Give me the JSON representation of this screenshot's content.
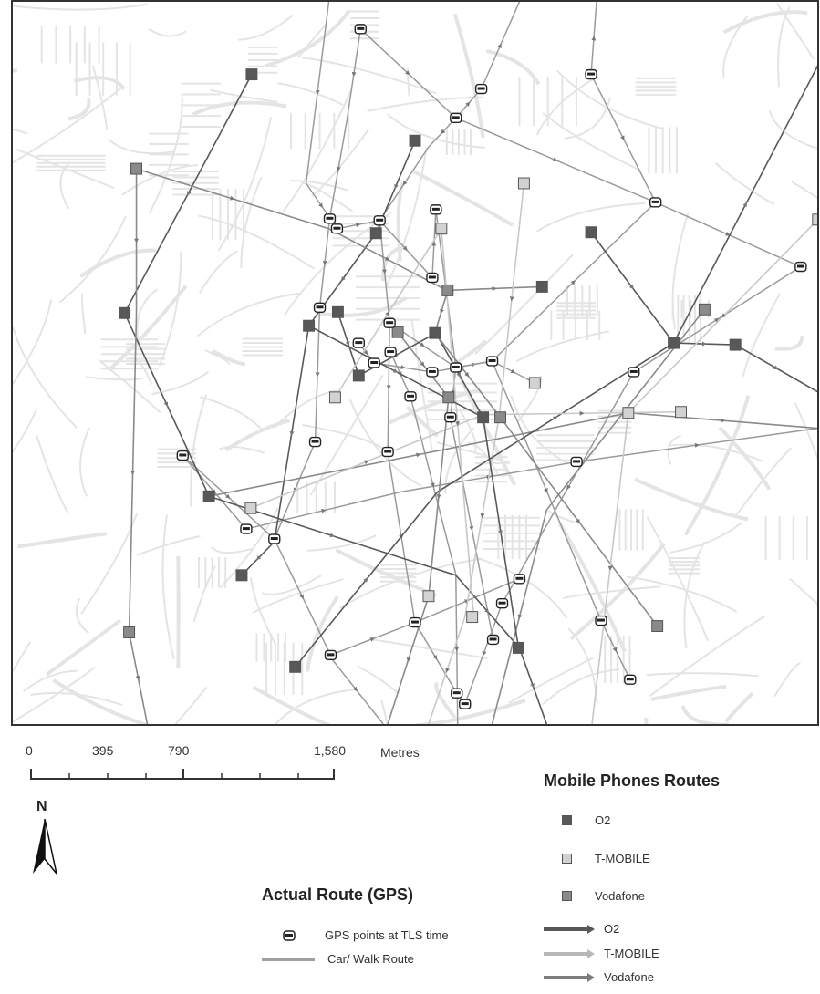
{
  "map": {
    "colors": {
      "o2": "#585858",
      "tmobile": "#c8c8c8",
      "vodafone": "#8a8a8a",
      "gps_route": "#9a9a9a",
      "street": "#e4e4e4"
    },
    "routes": [
      {
        "net": "o2",
        "pts": [
          [
            275,
            80
          ],
          [
            135,
            343
          ],
          [
            228,
            545
          ],
          [
            500,
            632
          ],
          [
            570,
            712
          ],
          [
            600,
            796
          ]
        ]
      },
      {
        "net": "vodafone",
        "pts": [
          [
            148,
            184
          ],
          [
            148,
            343
          ],
          [
            140,
            695
          ],
          [
            160,
            796
          ]
        ]
      },
      {
        "net": "o2",
        "pts": [
          [
            455,
            153
          ],
          [
            412,
            255
          ],
          [
            338,
            357
          ],
          [
            300,
            595
          ],
          [
            264,
            632
          ]
        ]
      },
      {
        "net": "vodafone",
        "pts": [
          [
            148,
            184
          ],
          [
            360,
            250
          ],
          [
            490,
            318
          ],
          [
            595,
            314
          ]
        ]
      },
      {
        "net": "o2",
        "pts": [
          [
            649,
            254
          ],
          [
            740,
            376
          ],
          [
            808,
            378
          ],
          [
            899,
            430
          ]
        ]
      },
      {
        "net": "tmobile",
        "pts": [
          [
            575,
            200
          ],
          [
            548,
            455
          ],
          [
            510,
            678
          ],
          [
            470,
            796
          ]
        ]
      },
      {
        "net": "vodafone",
        "pts": [
          [
            228,
            545
          ],
          [
            690,
            453
          ],
          [
            899,
            470
          ]
        ]
      },
      {
        "net": "o2",
        "pts": [
          [
            323,
            733
          ],
          [
            480,
            540
          ],
          [
            740,
            376
          ],
          [
            899,
            70
          ]
        ]
      },
      {
        "net": "tmobile",
        "pts": [
          [
            274,
            558
          ],
          [
            530,
            455
          ],
          [
            748,
            452
          ]
        ]
      },
      {
        "net": "vodafone",
        "pts": [
          [
            774,
            339
          ],
          [
            600,
            560
          ],
          [
            540,
            796
          ]
        ]
      },
      {
        "net": "o2",
        "pts": [
          [
            370,
            342
          ],
          [
            393,
            412
          ],
          [
            478,
            365
          ],
          [
            530,
            458
          ]
        ]
      },
      {
        "net": "tmobile",
        "pts": [
          [
            367,
            436
          ],
          [
            484,
            250
          ],
          [
            520,
            680
          ]
        ]
      },
      {
        "net": "vodafone",
        "pts": [
          [
            491,
            318
          ],
          [
            477,
            365
          ],
          [
            549,
            458
          ],
          [
            722,
            688
          ]
        ]
      },
      {
        "net": "o2",
        "pts": [
          [
            338,
            357
          ],
          [
            530,
            458
          ],
          [
            569,
            712
          ]
        ]
      },
      {
        "net": "tmobile",
        "pts": [
          [
            899,
            240
          ],
          [
            690,
            453
          ],
          [
            650,
            796
          ]
        ]
      },
      {
        "net": "vodafone",
        "pts": [
          [
            436,
            364
          ],
          [
            492,
            436
          ],
          [
            470,
            655
          ],
          [
            425,
            796
          ]
        ]
      }
    ],
    "gps_routes": [
      {
        "pts": [
          [
            395,
            30
          ],
          [
            380,
            130
          ],
          [
            361,
            239
          ],
          [
            350,
            337
          ],
          [
            345,
            485
          ],
          [
            300,
            592
          ]
        ]
      },
      {
        "pts": [
          [
            395,
            30
          ],
          [
            500,
            128
          ],
          [
            528,
            96
          ],
          [
            570,
            0
          ]
        ]
      },
      {
        "pts": [
          [
            500,
            128
          ],
          [
            470,
            160
          ],
          [
            416,
            241
          ],
          [
            427,
            354
          ],
          [
            500,
            403
          ],
          [
            540,
            396
          ],
          [
            587,
            420
          ]
        ]
      },
      {
        "pts": [
          [
            500,
            128
          ],
          [
            720,
            221
          ],
          [
            880,
            292
          ]
        ]
      },
      {
        "pts": [
          [
            649,
            80
          ],
          [
            655,
            0
          ]
        ]
      },
      {
        "pts": [
          [
            649,
            80
          ],
          [
            720,
            221
          ]
        ]
      },
      {
        "pts": [
          [
            199,
            500
          ],
          [
            269,
            581
          ],
          [
            440,
            540
          ],
          [
            633,
            507
          ],
          [
            899,
            470
          ]
        ]
      },
      {
        "pts": [
          [
            199,
            500
          ],
          [
            300,
            592
          ],
          [
            362,
            720
          ],
          [
            455,
            684
          ],
          [
            570,
            636
          ]
        ]
      },
      {
        "pts": [
          [
            360,
            720
          ],
          [
            420,
            796
          ]
        ]
      },
      {
        "pts": [
          [
            427,
            354
          ],
          [
            425,
            496
          ],
          [
            455,
            684
          ],
          [
            501,
            762
          ]
        ]
      },
      {
        "pts": [
          [
            474,
            304
          ],
          [
            478,
            229
          ],
          [
            500,
            403
          ],
          [
            494,
            458
          ],
          [
            541,
            703
          ]
        ]
      },
      {
        "pts": [
          [
            696,
            408
          ],
          [
            551,
            663
          ],
          [
            510,
            774
          ]
        ]
      },
      {
        "pts": [
          [
            696,
            408
          ],
          [
            880,
            292
          ]
        ]
      },
      {
        "pts": [
          [
            540,
            396
          ],
          [
            660,
            682
          ],
          [
            692,
            747
          ]
        ]
      },
      {
        "pts": [
          [
            428,
            386
          ],
          [
            450,
            435
          ],
          [
            500,
            631
          ],
          [
            502,
            796
          ]
        ]
      },
      {
        "pts": [
          [
            393,
            376
          ],
          [
            410,
            398
          ],
          [
            474,
            408
          ],
          [
            540,
            396
          ],
          [
            720,
            221
          ]
        ]
      },
      {
        "pts": [
          [
            360,
            0
          ],
          [
            335,
            200
          ],
          [
            369,
            250
          ],
          [
            416,
            241
          ],
          [
            474,
            304
          ]
        ]
      }
    ],
    "o2_markers": [
      [
        275,
        80
      ],
      [
        455,
        153
      ],
      [
        412,
        255
      ],
      [
        370,
        342
      ],
      [
        338,
        357
      ],
      [
        135,
        343
      ],
      [
        228,
        545
      ],
      [
        264,
        632
      ],
      [
        323,
        733
      ],
      [
        530,
        458
      ],
      [
        595,
        314
      ],
      [
        649,
        254
      ],
      [
        740,
        376
      ],
      [
        808,
        378
      ],
      [
        569,
        712
      ],
      [
        393,
        412
      ],
      [
        477,
        365
      ]
    ],
    "tmobile_markers": [
      [
        575,
        200
      ],
      [
        484,
        250
      ],
      [
        367,
        436
      ],
      [
        274,
        558
      ],
      [
        587,
        420
      ],
      [
        690,
        453
      ],
      [
        748,
        452
      ],
      [
        470,
        655
      ],
      [
        518,
        678
      ],
      [
        899,
        240
      ]
    ],
    "vodafone_markers": [
      [
        148,
        184
      ],
      [
        140,
        695
      ],
      [
        491,
        318
      ],
      [
        436,
        364
      ],
      [
        492,
        436
      ],
      [
        549,
        458
      ],
      [
        722,
        688
      ],
      [
        774,
        339
      ]
    ],
    "gps_markers": [
      [
        395,
        30
      ],
      [
        649,
        80
      ],
      [
        528,
        96
      ],
      [
        500,
        128
      ],
      [
        720,
        221
      ],
      [
        361,
        239
      ],
      [
        369,
        250
      ],
      [
        416,
        241
      ],
      [
        478,
        229
      ],
      [
        474,
        304
      ],
      [
        880,
        292
      ],
      [
        350,
        337
      ],
      [
        427,
        354
      ],
      [
        393,
        376
      ],
      [
        428,
        386
      ],
      [
        410,
        398
      ],
      [
        474,
        408
      ],
      [
        500,
        403
      ],
      [
        540,
        396
      ],
      [
        450,
        435
      ],
      [
        494,
        458
      ],
      [
        696,
        408
      ],
      [
        345,
        485
      ],
      [
        425,
        496
      ],
      [
        633,
        507
      ],
      [
        199,
        500
      ],
      [
        269,
        581
      ],
      [
        300,
        592
      ],
      [
        570,
        636
      ],
      [
        551,
        663
      ],
      [
        455,
        684
      ],
      [
        541,
        703
      ],
      [
        660,
        682
      ],
      [
        362,
        720
      ],
      [
        692,
        747
      ],
      [
        501,
        762
      ],
      [
        510,
        774
      ]
    ]
  },
  "scale_bar": {
    "labels": [
      "0",
      "395",
      "790",
      "1,580"
    ],
    "units": "Metres"
  },
  "north_arrow": {
    "label": "N"
  },
  "legend_mobile": {
    "title": "Mobile Phones Routes",
    "o2": "O2",
    "tmobile": "T-MOBILE",
    "vodafone": "Vodafone",
    "o2_line": "O2",
    "tmobile_line": "T-MOBILE",
    "vodafone_line": "Vodafone"
  },
  "legend_gps": {
    "title": "Actual Route (GPS)",
    "points": "GPS points at TLS time",
    "route": "Car/ Walk Route"
  }
}
